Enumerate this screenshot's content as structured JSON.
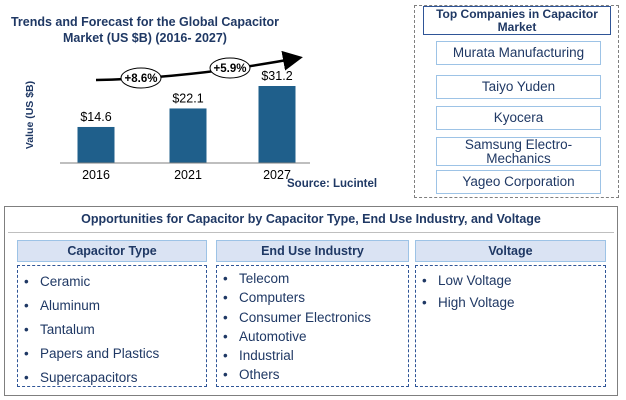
{
  "chart_data": {
    "type": "bar",
    "title": "Trends and Forecast for the Global Capacitor Market (US $B) (2016- 2027)",
    "ylabel": "Value (US $B)",
    "categories": [
      "2016",
      "2021",
      "2027"
    ],
    "values": [
      14.6,
      22.1,
      31.2
    ],
    "value_labels": [
      "$14.6",
      "$22.1",
      "$31.2"
    ],
    "ylim": [
      0,
      40
    ],
    "grid": false,
    "bar_color": "#1f5f8b",
    "cagr": [
      {
        "label": "+8.6%",
        "from": "2016",
        "to": "2021"
      },
      {
        "label": "+5.9%",
        "from": "2021",
        "to": "2027"
      }
    ],
    "source": "Source: Lucintel"
  },
  "companies": {
    "title": "Top Companies in Capacitor Market",
    "items": [
      "Murata Manufacturing",
      "Taiyo Yuden",
      "Kyocera",
      "Samsung Electro-Mechanics",
      "Yageo Corporation"
    ]
  },
  "opportunities": {
    "title": "Opportunities for Capacitor by Capacitor Type, End Use Industry, and Voltage",
    "columns": [
      {
        "header": "Capacitor Type",
        "items": [
          "Ceramic",
          "Aluminum",
          "Tantalum",
          "Papers and Plastics",
          "Supercapacitors"
        ]
      },
      {
        "header": "End Use Industry",
        "items": [
          "Telecom",
          "Computers",
          "Consumer Electronics",
          "Automotive",
          "Industrial",
          "Others"
        ]
      },
      {
        "header": "Voltage",
        "items": [
          "Low Voltage",
          "High Voltage"
        ]
      }
    ]
  }
}
